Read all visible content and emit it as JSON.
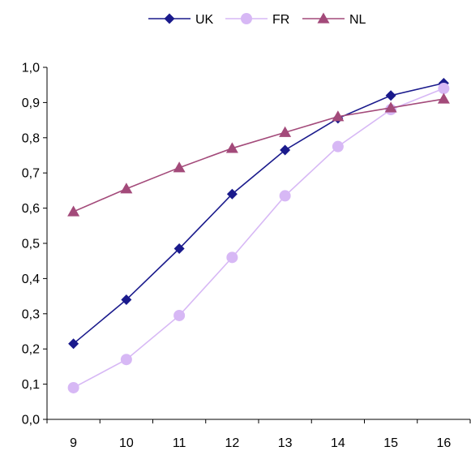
{
  "chart_data": {
    "type": "line",
    "title": "",
    "xlabel": "",
    "ylabel": "",
    "categories": [
      "9",
      "10",
      "11",
      "12",
      "13",
      "14",
      "15",
      "16"
    ],
    "ylim": [
      0,
      1.0
    ],
    "yticks": [
      "0,0",
      "0,1",
      "0,2",
      "0,3",
      "0,4",
      "0,5",
      "0,6",
      "0,7",
      "0,8",
      "0,9",
      "1,0"
    ],
    "grid": false,
    "legend_position": "top",
    "series": [
      {
        "name": "UK",
        "color": "#1a1a8c",
        "marker": "diamond",
        "values": [
          0.215,
          0.34,
          0.485,
          0.64,
          0.765,
          0.855,
          0.92,
          0.955
        ]
      },
      {
        "name": "FR",
        "color": "#d7b8f5",
        "marker": "circle",
        "values": [
          0.09,
          0.17,
          0.295,
          0.46,
          0.635,
          0.775,
          0.88,
          0.94
        ]
      },
      {
        "name": "NL",
        "color": "#a34a7a",
        "marker": "triangle",
        "values": [
          0.59,
          0.655,
          0.715,
          0.77,
          0.815,
          0.86,
          0.885,
          0.91
        ]
      }
    ]
  }
}
